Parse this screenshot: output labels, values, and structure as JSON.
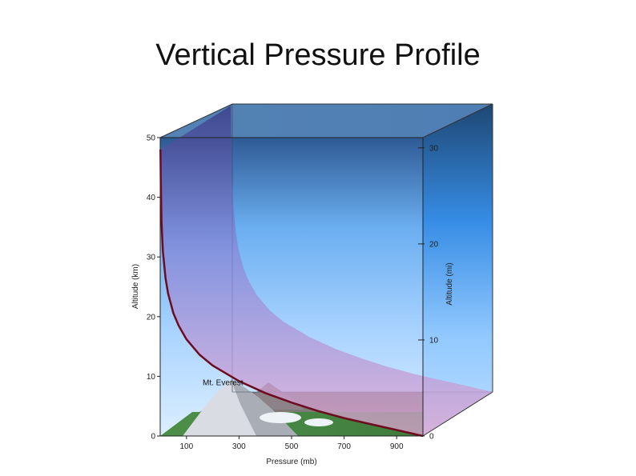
{
  "slide": {
    "title": "Vertical Pressure Profile"
  },
  "colors": {
    "profile_line": "#6e0b1e",
    "sky_top": "#2f5c96",
    "sky_light": "#b9dcff",
    "ground": "#4b8a45"
  },
  "chart_data": {
    "type": "line",
    "title": "",
    "xlabel": "Pressure (mb)",
    "ylabel": "Altitude (km)",
    "y2label": "Altitude (mi)",
    "xlim": [
      0,
      1000
    ],
    "ylim": [
      0,
      50
    ],
    "y2lim": [
      0,
      31.07
    ],
    "x_ticks": [
      "100",
      "300",
      "500",
      "700",
      "900"
    ],
    "x_tick_values": [
      100,
      300,
      500,
      700,
      900
    ],
    "y_ticks": [
      "0",
      "10",
      "20",
      "30",
      "40",
      "50"
    ],
    "y_tick_values": [
      0,
      10,
      20,
      30,
      40,
      50
    ],
    "y2_ticks": [
      "0",
      "10",
      "20",
      "30"
    ],
    "y2_tick_values": [
      0,
      10,
      20,
      30
    ],
    "grid": false,
    "series": [
      {
        "x": [
          1013,
          900,
          800,
          700,
          600,
          500,
          400,
          300,
          200,
          150,
          100,
          70,
          50,
          30,
          20,
          10,
          5,
          2,
          1
        ],
        "y": [
          0,
          1,
          2,
          3,
          4.2,
          5.6,
          7.2,
          9.2,
          11.8,
          13.6,
          16.2,
          18.5,
          20.6,
          23.9,
          26.5,
          31,
          36,
          43,
          48
        ]
      }
    ],
    "annotations": [
      {
        "text": "Mt. Everest",
        "x": 314,
        "y": 8.8
      }
    ]
  }
}
